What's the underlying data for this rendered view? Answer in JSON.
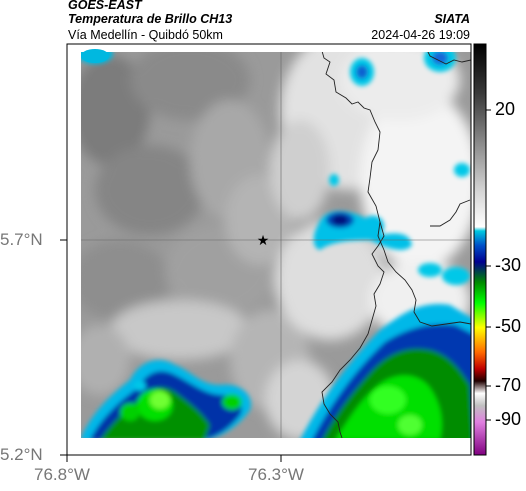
{
  "header": {
    "satellite": "GOES-EAST",
    "product": "Temperatura de Brillo CH13",
    "region": "Vía Medellín - Quibdó 50km",
    "agency": "SIATA",
    "datetime": "2024-04-26 19:09"
  },
  "map": {
    "y_ticks": [
      {
        "label": "5.7°N",
        "lat": 5.7
      },
      {
        "label": "5.2°N",
        "lat": 5.2
      }
    ],
    "x_ticks": [
      {
        "label": "76.8°W",
        "lon": -76.8
      },
      {
        "label": "76.3°W",
        "lon": -76.3
      }
    ],
    "marker": "star-marker"
  },
  "colorbar": {
    "tick_labels": [
      "20",
      "-30",
      "-50",
      "-70",
      "-90"
    ],
    "colors": [
      "#000000",
      "#ffffff",
      "#0000a0",
      "#00ff00",
      "#ffff00",
      "#ff0000",
      "#800080"
    ]
  }
}
